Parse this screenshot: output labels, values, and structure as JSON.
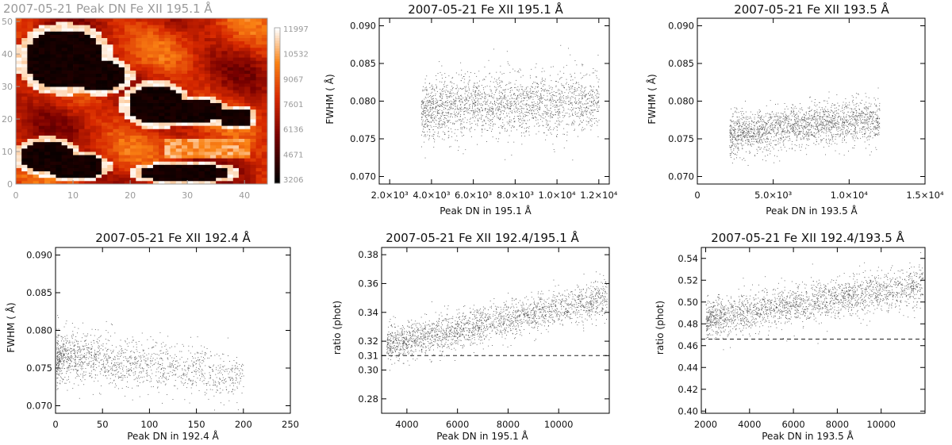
{
  "figure": {
    "panels": [
      {
        "title": "2007-05-21 Peak DN Fe XII 195.1   Å"
      },
      {
        "title": "2007-05-21 Fe XII 195.1   Å",
        "xlabel": "Peak DN in 195.1   Å",
        "ylabel": "FWHM ( Å)"
      },
      {
        "title": "2007-05-21 Fe XII 193.5 Å",
        "xlabel": "Peak DN in 193.5 Å",
        "ylabel": "FWHM ( Å)"
      },
      {
        "title": "2007-05-21 Fe XII 192.4 Å",
        "xlabel": "Peak DN in 192.4 Å",
        "ylabel": "FWHM ( Å)"
      },
      {
        "title": "2007-05-21 Fe XII 192.4/195.1 Å",
        "xlabel": "Peak DN in 195.1   Å",
        "ylabel": "ratio (phot)"
      },
      {
        "title": "2007-05-21 Fe XII 192.4/193.5 Å",
        "xlabel": "Peak DN in 193.5 Å",
        "ylabel": "ratio (phot)"
      }
    ]
  },
  "chart_data": [
    {
      "type": "heatmap",
      "title": "2007-05-21 Peak DN Fe XII 195.1   Å",
      "xlim": [
        0,
        44
      ],
      "ylim": [
        0,
        51
      ],
      "xticks": [
        "0",
        "10",
        "20",
        "30",
        "40"
      ],
      "yticks": [
        "0",
        "10",
        "20",
        "30",
        "40",
        "50"
      ],
      "colorbar": {
        "ticks": [
          "11997",
          "10532",
          "9067",
          "7601",
          "6136",
          "4671",
          "3206"
        ],
        "min": 3206,
        "max": 11997
      },
      "colors": {
        "title": "#9a9a9a",
        "low": "#000000",
        "mid": "#d62a00",
        "high": "#ffffff"
      }
    },
    {
      "type": "scatter",
      "title": "2007-05-21 Fe XII 195.1   Å",
      "xlabel": "Peak DN in 195.1   Å",
      "ylabel": "FWHM ( Å)",
      "xlim": [
        1500,
        12500
      ],
      "ylim": [
        0.069,
        0.091
      ],
      "xticks": [
        2000,
        4000,
        6000,
        8000,
        10000,
        12000
      ],
      "xticklabels": [
        "2.0×10³",
        "4.0×10³",
        "6.0×10³",
        "8.0×10³",
        "1.0×10⁴",
        "1.2×10⁴"
      ],
      "yticks": [
        0.07,
        0.075,
        0.08,
        0.085,
        0.09
      ],
      "yticklabels": [
        "0.070",
        "0.075",
        "0.080",
        "0.085",
        "0.090"
      ],
      "cloud": {
        "x_range": [
          3500,
          12000
        ],
        "y_center": 0.0795,
        "y_spread": 0.0025,
        "trend": [
          [
            3500,
            0.0788
          ],
          [
            6000,
            0.0795
          ],
          [
            12000,
            0.08
          ]
        ],
        "n_points": 2200
      }
    },
    {
      "type": "scatter",
      "title": "2007-05-21 Fe XII 193.5 Å",
      "xlabel": "Peak DN in 193.5 Å",
      "ylabel": "FWHM ( Å)",
      "xlim": [
        0,
        15000
      ],
      "ylim": [
        0.069,
        0.091
      ],
      "xticks": [
        0,
        5000,
        10000,
        15000
      ],
      "xticklabels": [
        "0",
        "5.0×10³",
        "1.0×10⁴",
        "1.5×10⁴"
      ],
      "yticks": [
        0.07,
        0.075,
        0.08,
        0.085,
        0.09
      ],
      "yticklabels": [
        "0.070",
        "0.075",
        "0.080",
        "0.085",
        "0.090"
      ],
      "cloud": {
        "x_range": [
          2100,
          12000
        ],
        "y_center": 0.0765,
        "y_spread": 0.0018,
        "trend": [
          [
            2100,
            0.0755
          ],
          [
            5000,
            0.0765
          ],
          [
            12000,
            0.0775
          ]
        ],
        "n_points": 2000
      }
    },
    {
      "type": "scatter",
      "title": "2007-05-21 Fe XII 192.4 Å",
      "xlabel": "Peak DN in 192.4 Å",
      "ylabel": "FWHM ( Å)",
      "xlim": [
        0,
        250
      ],
      "ylim": [
        0.069,
        0.091
      ],
      "xticks": [
        0,
        50,
        100,
        150,
        200,
        250
      ],
      "xticklabels": [
        "0",
        "50",
        "100",
        "150",
        "200",
        "250"
      ],
      "yticks": [
        0.07,
        0.075,
        0.08,
        0.085,
        0.09
      ],
      "yticklabels": [
        "0.070",
        "0.075",
        "0.080",
        "0.085",
        "0.090"
      ],
      "cloud": {
        "x_range": [
          0,
          200
        ],
        "y_center": 0.076,
        "y_spread": 0.002,
        "trend": [
          [
            0,
            0.0765
          ],
          [
            100,
            0.0755
          ],
          [
            200,
            0.074
          ]
        ],
        "n_points": 1600
      }
    },
    {
      "type": "scatter",
      "title": "2007-05-21 Fe XII 192.4/195.1 Å",
      "xlabel": "Peak DN in 195.1   Å",
      "ylabel": "ratio (phot)",
      "xlim": [
        3000,
        12000
      ],
      "ylim": [
        0.27,
        0.385
      ],
      "xticks": [
        4000,
        6000,
        8000,
        10000
      ],
      "xticklabels": [
        "4000",
        "6000",
        "8000",
        "10000"
      ],
      "yticks": [
        0.28,
        0.3,
        0.31,
        0.32,
        0.34,
        0.36,
        0.38
      ],
      "yticklabels": [
        "0.28",
        "0.30",
        "0.31",
        "0.32",
        "0.34",
        "0.36",
        "0.38"
      ],
      "reference_line": {
        "y": 0.31,
        "style": "dashed"
      },
      "cloud": {
        "x_range": [
          3200,
          11900
        ],
        "y_center": 0.33,
        "y_spread": 0.008,
        "trend": [
          [
            3200,
            0.318
          ],
          [
            6000,
            0.328
          ],
          [
            8000,
            0.336
          ],
          [
            11900,
            0.35
          ]
        ],
        "n_points": 2200
      }
    },
    {
      "type": "scatter",
      "title": "2007-05-21 Fe XII 192.4/193.5 Å",
      "xlabel": "Peak DN in 193.5 Å",
      "ylabel": "ratio (phot)",
      "xlim": [
        1800,
        12000
      ],
      "ylim": [
        0.398,
        0.55
      ],
      "xticks": [
        2000,
        4000,
        6000,
        8000,
        10000
      ],
      "xticklabels": [
        "2000",
        "4000",
        "6000",
        "8000",
        "10000"
      ],
      "yticks": [
        0.4,
        0.42,
        0.44,
        0.46,
        0.48,
        0.5,
        0.52,
        0.54
      ],
      "yticklabels": [
        "0.40",
        "0.42",
        "0.44",
        "0.46",
        "0.48",
        "0.50",
        "0.52",
        "0.54"
      ],
      "reference_line": {
        "y": 0.466,
        "style": "dashed"
      },
      "cloud": {
        "x_range": [
          2000,
          11900
        ],
        "y_center": 0.495,
        "y_spread": 0.011,
        "trend": [
          [
            2000,
            0.484
          ],
          [
            6000,
            0.498
          ],
          [
            11900,
            0.515
          ]
        ],
        "n_points": 2200
      }
    }
  ]
}
